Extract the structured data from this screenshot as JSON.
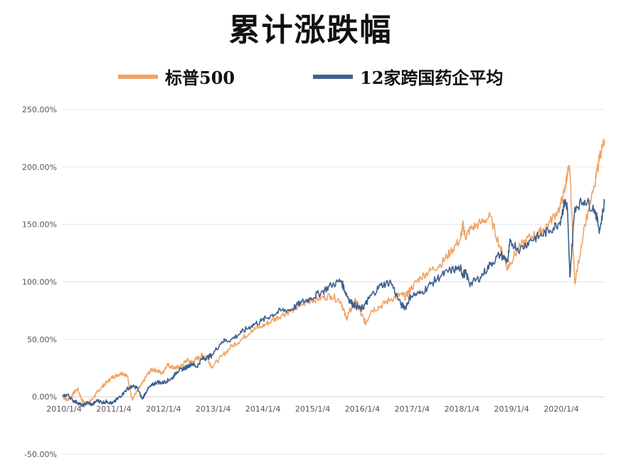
{
  "title": "累计涨跌幅",
  "legend": [
    {
      "label": "标普500",
      "color": "#f0a466"
    },
    {
      "label": "12家跨国药企平均",
      "color": "#3f5f8f"
    }
  ],
  "chart_data": {
    "type": "line",
    "title": "累计涨跌幅",
    "xlabel": "",
    "ylabel": "",
    "ylim": [
      -50,
      250
    ],
    "yticks": [
      "250.00%",
      "200.00%",
      "150.00%",
      "100.00%",
      "50.00%",
      "0.00%",
      "-50.00%"
    ],
    "ytick_values": [
      250,
      200,
      150,
      100,
      50,
      0,
      -50
    ],
    "xticks": [
      "2010/1/4",
      "2011/1/4",
      "2012/1/4",
      "2013/1/4",
      "2014/1/4",
      "2015/1/4",
      "2016/1/4",
      "2017/1/4",
      "2018/1/4",
      "2019/1/4",
      "2020/1/4"
    ],
    "xtick_values": [
      2010.0,
      2011.0,
      2012.0,
      2013.0,
      2014.0,
      2015.0,
      2016.0,
      2017.0,
      2018.0,
      2019.0,
      2020.0
    ],
    "xlim": [
      2010.0,
      2020.9
    ],
    "grid": true,
    "legend_position": "top",
    "series": [
      {
        "name": "标普500",
        "color": "#f0a466",
        "x": [
          2010.0,
          2010.1,
          2010.2,
          2010.3,
          2010.4,
          2010.5,
          2010.6,
          2010.7,
          2010.8,
          2010.9,
          2011.0,
          2011.1,
          2011.2,
          2011.3,
          2011.4,
          2011.5,
          2011.6,
          2011.7,
          2011.8,
          2011.9,
          2012.0,
          2012.1,
          2012.2,
          2012.3,
          2012.4,
          2012.5,
          2012.6,
          2012.7,
          2012.8,
          2012.9,
          2013.0,
          2013.2,
          2013.4,
          2013.6,
          2013.8,
          2014.0,
          2014.2,
          2014.4,
          2014.6,
          2014.8,
          2015.0,
          2015.2,
          2015.4,
          2015.6,
          2015.7,
          2015.8,
          2015.9,
          2016.0,
          2016.1,
          2016.2,
          2016.4,
          2016.6,
          2016.8,
          2016.9,
          2017.0,
          2017.2,
          2017.4,
          2017.6,
          2017.8,
          2018.0,
          2018.05,
          2018.1,
          2018.2,
          2018.4,
          2018.6,
          2018.8,
          2018.95,
          2019.0,
          2019.2,
          2019.4,
          2019.6,
          2019.8,
          2020.0,
          2020.1,
          2020.15,
          2020.2,
          2020.3,
          2020.5,
          2020.7,
          2020.8,
          2020.9
        ],
        "y": [
          0,
          -3,
          2,
          7,
          -4,
          -6,
          -2,
          4,
          9,
          13,
          17,
          19,
          21,
          18,
          -2,
          5,
          11,
          19,
          24,
          23,
          20,
          28,
          26,
          25,
          27,
          32,
          30,
          33,
          36,
          35,
          26,
          35,
          44,
          50,
          58,
          61,
          66,
          71,
          75,
          80,
          84,
          86,
          88,
          83,
          68,
          76,
          84,
          72,
          64,
          75,
          79,
          85,
          89,
          87,
          94,
          104,
          110,
          115,
          126,
          137,
          150,
          139,
          146,
          151,
          157,
          130,
          112,
          117,
          131,
          139,
          143,
          152,
          165,
          180,
          195,
          198,
          98,
          150,
          183,
          210,
          223
        ]
      },
      {
        "name": "12家跨国药企平均",
        "color": "#3f5f8f",
        "x": [
          2010.0,
          2010.1,
          2010.2,
          2010.3,
          2010.4,
          2010.5,
          2010.6,
          2010.7,
          2010.8,
          2010.9,
          2011.0,
          2011.1,
          2011.2,
          2011.3,
          2011.4,
          2011.5,
          2011.6,
          2011.7,
          2011.8,
          2011.9,
          2012.0,
          2012.1,
          2012.2,
          2012.3,
          2012.4,
          2012.5,
          2012.6,
          2012.7,
          2012.8,
          2012.9,
          2013.0,
          2013.2,
          2013.4,
          2013.6,
          2013.8,
          2014.0,
          2014.2,
          2014.4,
          2014.6,
          2014.8,
          2015.0,
          2015.2,
          2015.4,
          2015.6,
          2015.7,
          2015.8,
          2015.9,
          2016.0,
          2016.1,
          2016.2,
          2016.4,
          2016.6,
          2016.8,
          2016.9,
          2017.0,
          2017.2,
          2017.4,
          2017.6,
          2017.8,
          2018.0,
          2018.05,
          2018.1,
          2018.2,
          2018.4,
          2018.6,
          2018.8,
          2018.95,
          2019.0,
          2019.2,
          2019.4,
          2019.6,
          2019.8,
          2020.0,
          2020.1,
          2020.15,
          2020.2,
          2020.3,
          2020.5,
          2020.7,
          2020.8,
          2020.9
        ],
        "y": [
          0,
          2,
          -3,
          -5,
          -8,
          -5,
          -7,
          -3,
          -5,
          -4,
          -6,
          -2,
          2,
          7,
          9,
          8,
          -2,
          6,
          10,
          13,
          12,
          14,
          16,
          22,
          24,
          26,
          29,
          26,
          33,
          34,
          36,
          48,
          50,
          56,
          62,
          66,
          71,
          75,
          76,
          82,
          86,
          91,
          97,
          101,
          90,
          82,
          79,
          76,
          81,
          88,
          97,
          100,
          80,
          78,
          88,
          90,
          98,
          105,
          110,
          112,
          106,
          108,
          98,
          104,
          115,
          124,
          118,
          135,
          128,
          136,
          140,
          145,
          152,
          170,
          165,
          104,
          165,
          171,
          163,
          145,
          170
        ]
      }
    ]
  }
}
